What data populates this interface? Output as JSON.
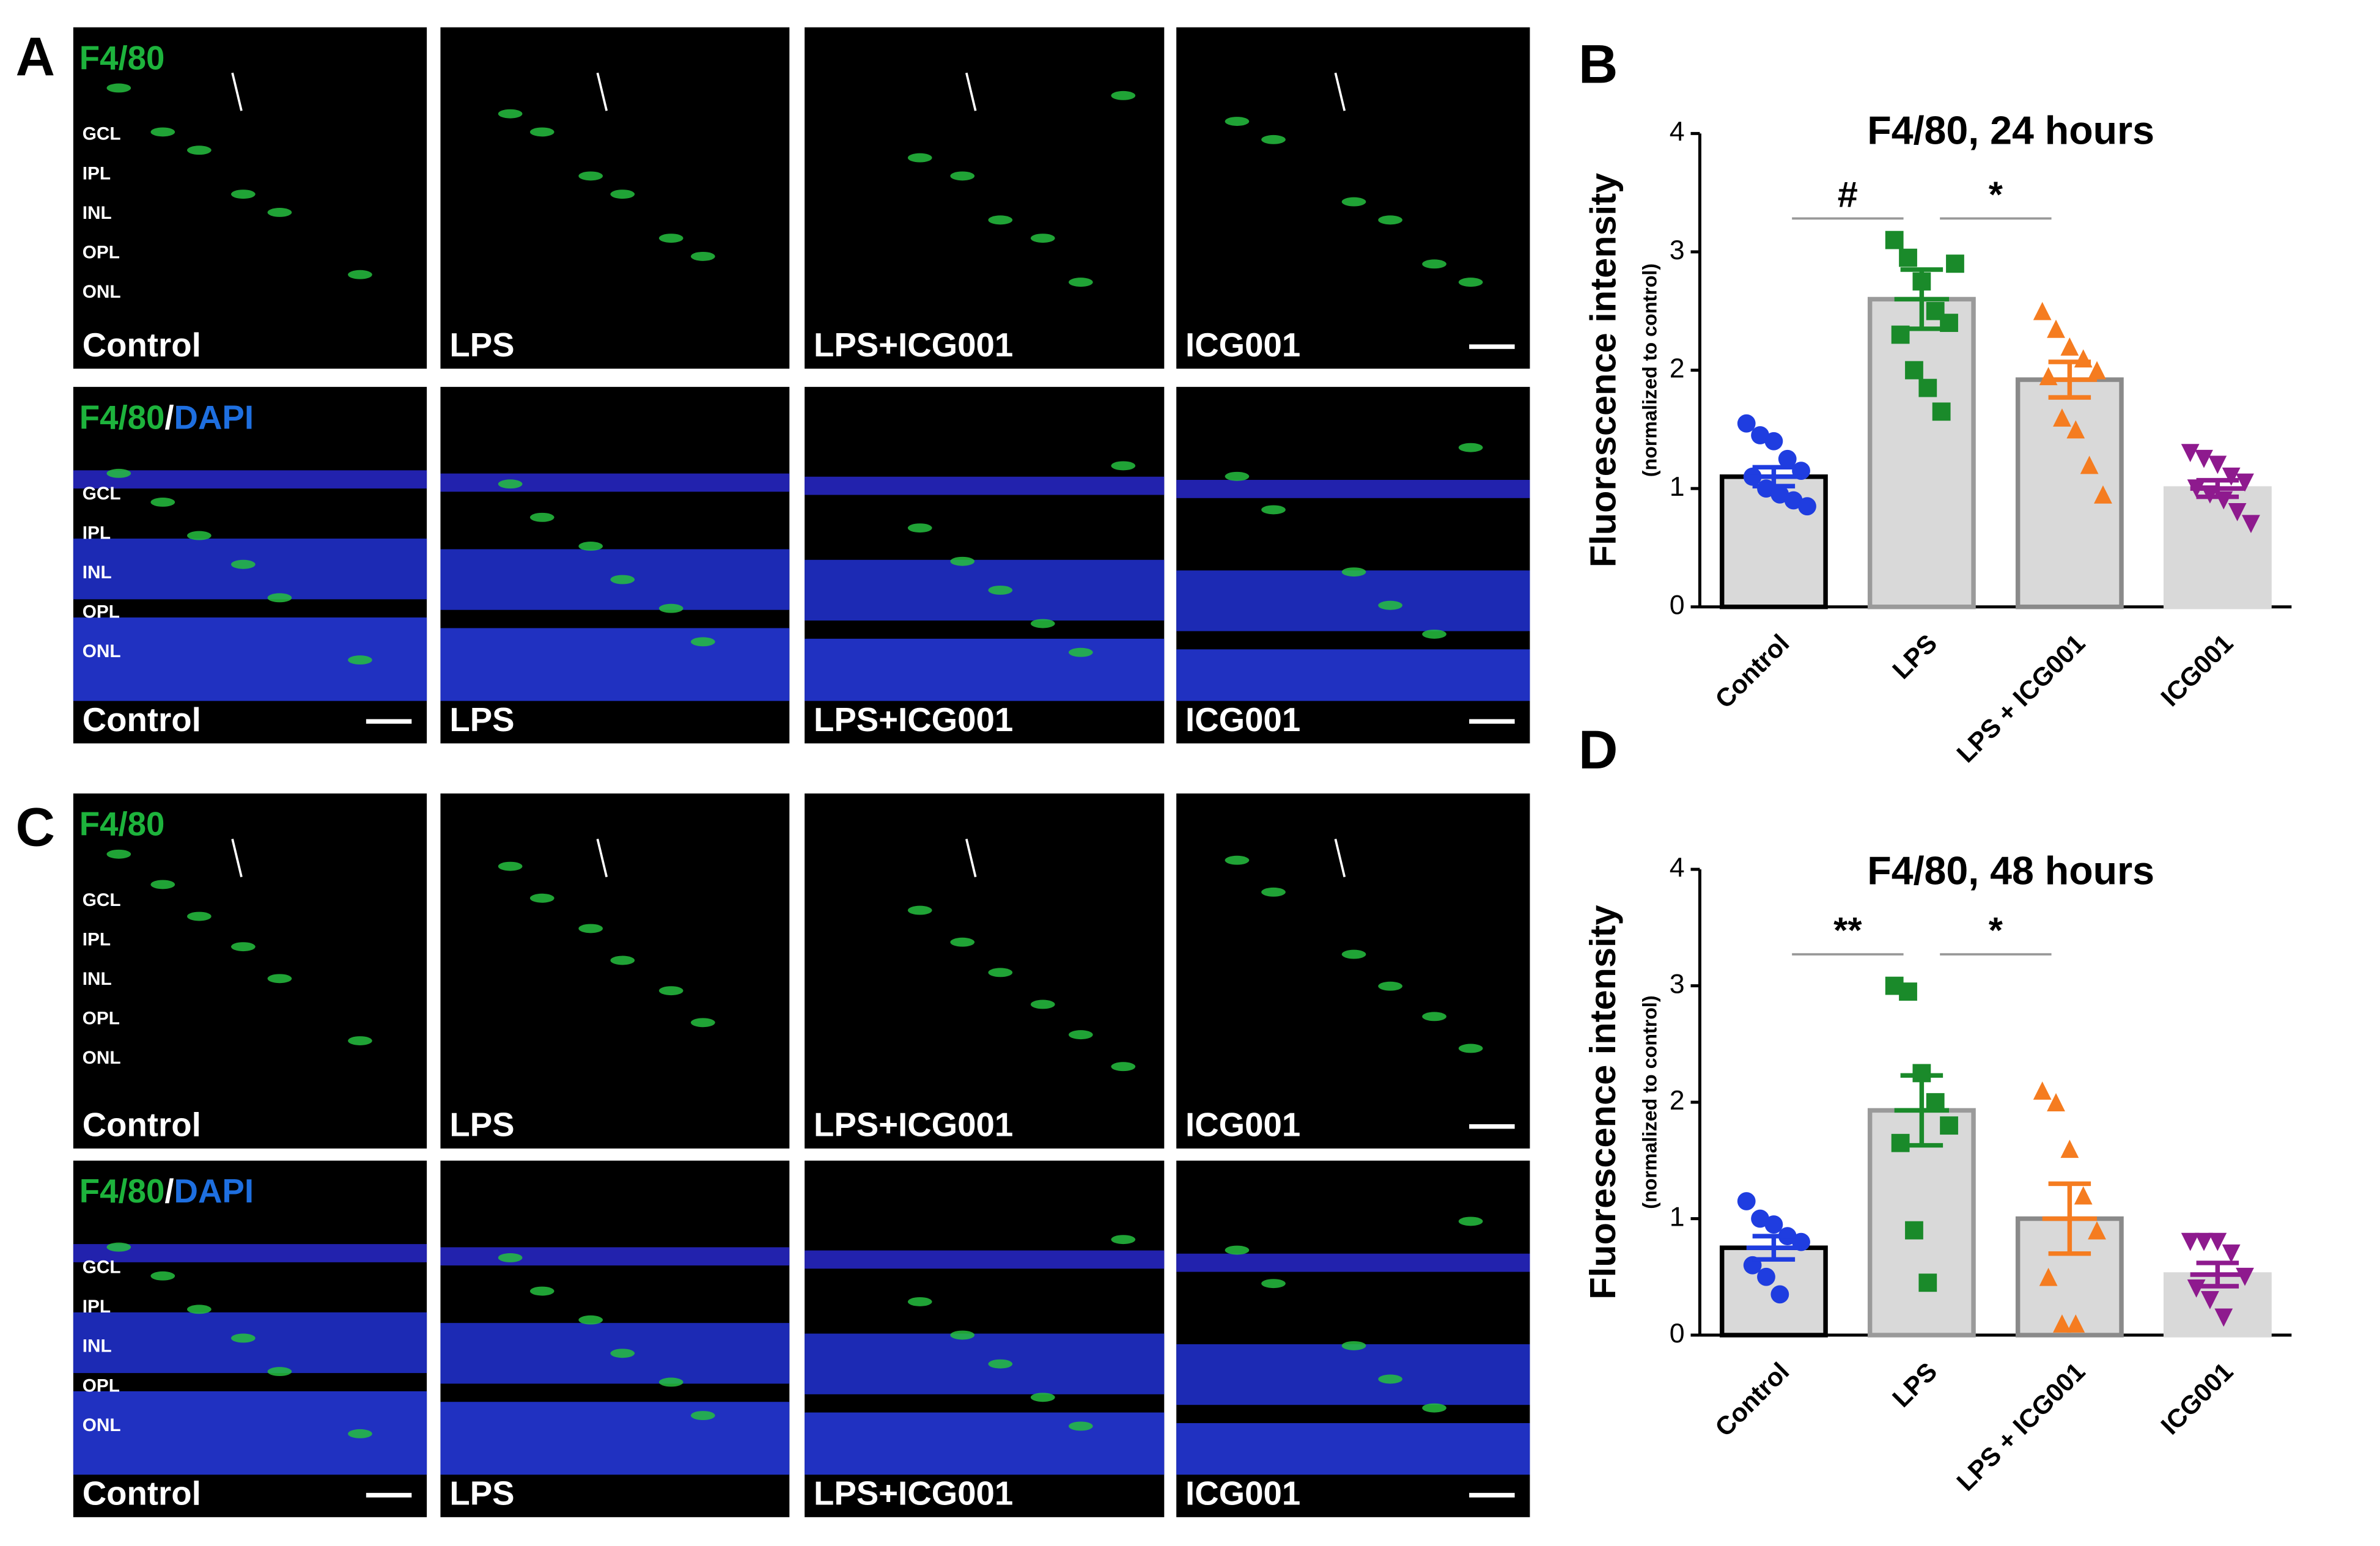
{
  "image_panels": [
    {
      "letter": "A",
      "rows": [
        {
          "stain": [
            "F4/80"
          ],
          "stain_colors": [
            "#1db33c"
          ],
          "layers": [
            "GCL",
            "IPL",
            "INL",
            "OPL",
            "ONL"
          ],
          "conditions": [
            "Control",
            "LPS",
            "LPS+ICG001",
            "ICG001"
          ]
        },
        {
          "stain": [
            "F4/80",
            "/",
            "DAPI"
          ],
          "stain_colors": [
            "#1db33c",
            "#ffffff",
            "#1e6fe0"
          ],
          "layers": [
            "GCL",
            "IPL",
            "INL",
            "OPL",
            "ONL"
          ],
          "conditions": [
            "Control",
            "LPS",
            "LPS+ICG001",
            "ICG001"
          ]
        }
      ]
    },
    {
      "letter": "C",
      "rows": [
        {
          "stain": [
            "F4/80"
          ],
          "stain_colors": [
            "#1db33c"
          ],
          "layers": [
            "GCL",
            "IPL",
            "INL",
            "OPL",
            "ONL"
          ],
          "conditions": [
            "Control",
            "LPS",
            "LPS+ICG001",
            "ICG001"
          ]
        },
        {
          "stain": [
            "F4/80",
            "/",
            "DAPI"
          ],
          "stain_colors": [
            "#1db33c",
            "#ffffff",
            "#1e6fe0"
          ],
          "layers": [
            "GCL",
            "IPL",
            "INL",
            "OPL",
            "ONL"
          ],
          "conditions": [
            "Control",
            "LPS",
            "LPS+ICG001",
            "ICG001"
          ]
        }
      ]
    }
  ],
  "chart_data": [
    {
      "type": "bar",
      "letter": "B",
      "title": "F4/80, 24 hours",
      "ylabel": "Fluorescence intensity",
      "ylabel_sub": "(normalized to control)",
      "categories": [
        "Control",
        "LPS",
        "LPS + ICG001",
        "ICG001"
      ],
      "values": [
        1.1,
        2.6,
        1.92,
        1.0
      ],
      "errors": [
        0.08,
        0.25,
        0.15,
        0.07
      ],
      "points": [
        [
          1.55,
          1.45,
          1.4,
          1.25,
          1.15,
          1.1,
          1.0,
          0.95,
          0.9,
          0.85
        ],
        [
          3.1,
          2.95,
          2.75,
          2.5,
          2.4,
          2.3,
          2.0,
          1.85,
          1.65,
          2.9
        ],
        [
          2.5,
          2.35,
          2.2,
          2.1,
          2.0,
          1.95,
          1.6,
          1.5,
          1.2,
          0.95
        ],
        [
          1.3,
          1.25,
          1.2,
          1.1,
          1.05,
          1.0,
          0.95,
          0.9,
          0.8,
          0.7
        ]
      ],
      "colors": [
        "#1f3de0",
        "#1a8a2a",
        "#f57c20",
        "#8e1a8e"
      ],
      "edge_colors": [
        "#000000",
        "#9a9a9a",
        "#8a8a8a",
        "#d9d9d9"
      ],
      "bar_color": "#d9d9d9",
      "markers": [
        "circle",
        "square",
        "triangle",
        "triangle-down"
      ],
      "annotations": [
        "#",
        "*"
      ],
      "ylim": [
        0,
        4
      ],
      "yticks": [
        0,
        1,
        2,
        3,
        4
      ]
    },
    {
      "type": "bar",
      "letter": "D",
      "title": "F4/80, 48 hours",
      "ylabel": "Fluorescence intensity",
      "ylabel_sub": "(normalized to control)",
      "categories": [
        "Control",
        "LPS",
        "LPS + ICG001",
        "ICG001"
      ],
      "values": [
        0.75,
        1.93,
        1.0,
        0.52
      ],
      "errors": [
        0.1,
        0.3,
        0.3,
        0.1
      ],
      "points": [
        [
          1.15,
          1.0,
          0.95,
          0.85,
          0.8,
          0.6,
          0.5,
          0.35
        ],
        [
          3.0,
          2.95,
          2.25,
          2.0,
          1.8,
          1.65,
          0.9,
          0.45
        ],
        [
          2.1,
          2.0,
          1.6,
          1.2,
          0.9,
          0.5,
          0.1,
          0.1
        ],
        [
          0.8,
          0.8,
          0.8,
          0.7,
          0.5,
          0.4,
          0.3,
          0.15
        ]
      ],
      "colors": [
        "#1f3de0",
        "#1a8a2a",
        "#f57c20",
        "#8e1a8e"
      ],
      "edge_colors": [
        "#000000",
        "#9a9a9a",
        "#8a8a8a",
        "#d9d9d9"
      ],
      "bar_color": "#d9d9d9",
      "markers": [
        "circle",
        "square",
        "triangle",
        "triangle-down"
      ],
      "annotations": [
        "**",
        "*"
      ],
      "ylim": [
        0,
        4
      ],
      "yticks": [
        0,
        1,
        2,
        3,
        4
      ]
    }
  ]
}
